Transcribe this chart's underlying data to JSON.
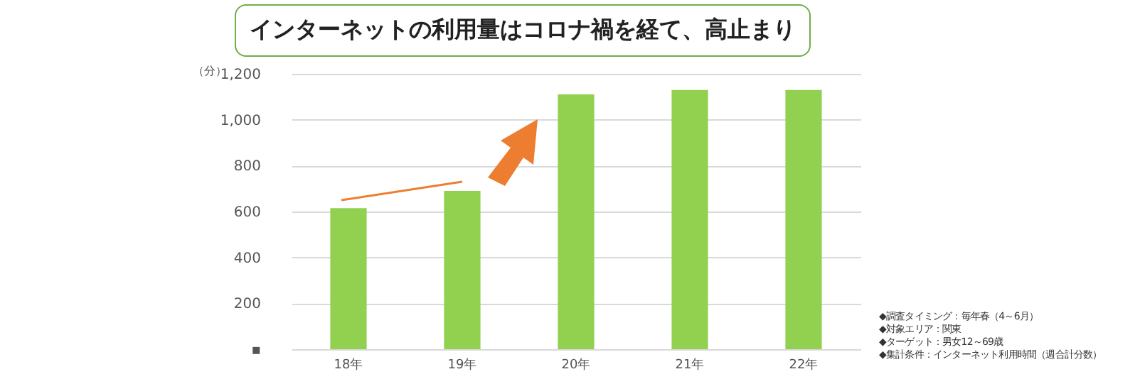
{
  "chart_data": {
    "type": "bar",
    "title": "インターネットの利用量はコロナ禍を経て、高止まり",
    "ylabel": "（分）",
    "categories": [
      "18年",
      "19年",
      "20年",
      "21年",
      "22年"
    ],
    "values": [
      615,
      690,
      1110,
      1130,
      1130
    ],
    "color": "#92d050",
    "ylim": [
      0,
      1200
    ],
    "yticks": [
      {
        "value": 0,
        "label": "▪"
      },
      200,
      400,
      600,
      800,
      {
        "value": 1000,
        "label": "1,000"
      },
      {
        "value": 1200,
        "label": "1,200"
      }
    ],
    "grid": "y",
    "annotations": [
      "◆調査タイミング：毎年春（4～6月）",
      "◆対象エリア：関東",
      "◆ターゲット：男女12～69歳",
      "◆集計条件：インターネット利用時間（週合計分数）"
    ]
  }
}
